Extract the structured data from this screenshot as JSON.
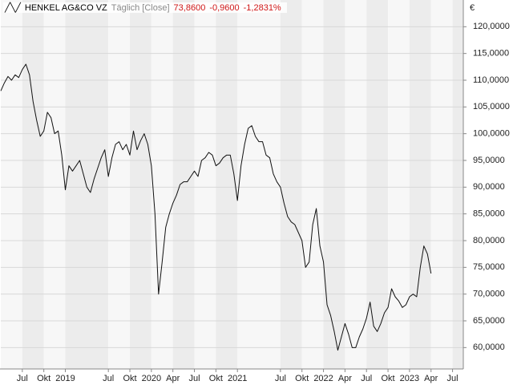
{
  "chart_data": {
    "type": "line",
    "title": "HENKEL AG&CO VZ",
    "subtitle": "Täglich [Close]",
    "last": "73,8600",
    "change": "-0,9600",
    "change_pct": "-1,2831%",
    "currency": "€",
    "xlim": [
      0,
      129
    ],
    "xticks": [
      {
        "value": 6,
        "label": "Jul"
      },
      {
        "value": 12,
        "label": "Okt"
      },
      {
        "value": 18,
        "label": "2019"
      },
      {
        "value": 30,
        "label": "Jul"
      },
      {
        "value": 36,
        "label": "Okt"
      },
      {
        "value": 42,
        "label": "2020"
      },
      {
        "value": 48,
        "label": "Apr"
      },
      {
        "value": 54,
        "label": "Jul"
      },
      {
        "value": 60,
        "label": "Okt"
      },
      {
        "value": 66,
        "label": "2021"
      },
      {
        "value": 78,
        "label": "Jul"
      },
      {
        "value": 84,
        "label": "Okt"
      },
      {
        "value": 90,
        "label": "2022"
      },
      {
        "value": 96,
        "label": "Apr"
      },
      {
        "value": 102,
        "label": "Jul"
      },
      {
        "value": 108,
        "label": "Okt"
      },
      {
        "value": 114,
        "label": "2023"
      },
      {
        "value": 120,
        "label": "Apr"
      },
      {
        "value": 126,
        "label": "Jul"
      }
    ],
    "ylim": [
      56,
      125
    ],
    "yticks": [
      {
        "value": 60,
        "label": "60,0000"
      },
      {
        "value": 65,
        "label": "65,0000"
      },
      {
        "value": 70,
        "label": "70,0000"
      },
      {
        "value": 75,
        "label": "75,0000"
      },
      {
        "value": 80,
        "label": "80,0000"
      },
      {
        "value": 85,
        "label": "85,0000"
      },
      {
        "value": 90,
        "label": "90,0000"
      },
      {
        "value": 95,
        "label": "95,0000"
      },
      {
        "value": 100,
        "label": "100,0000"
      },
      {
        "value": 105,
        "label": "105,0000"
      },
      {
        "value": 110,
        "label": "110,0000"
      },
      {
        "value": 115,
        "label": "115,0000"
      },
      {
        "value": 120,
        "label": "120,0000"
      }
    ],
    "grid": true,
    "series": [
      {
        "color": "#111111",
        "values": [
          108,
          109.5,
          110.7,
          110,
          111,
          110.5,
          112,
          113,
          111,
          106,
          102.5,
          99.5,
          100.5,
          104,
          103,
          100,
          100.5,
          96,
          89.5,
          94,
          93,
          94,
          95,
          92.5,
          90,
          89,
          91.5,
          93.5,
          95.5,
          97,
          92,
          95.5,
          98,
          98.5,
          97,
          98,
          96,
          100.5,
          97,
          98.7,
          100,
          98,
          94,
          85,
          70,
          76,
          82.5,
          85,
          87,
          88.5,
          90.5,
          91,
          91,
          92,
          93,
          92,
          95,
          95.5,
          96.5,
          96,
          94,
          94.5,
          95.5,
          96,
          96,
          92.5,
          87.5,
          94,
          98,
          101,
          101.5,
          99.5,
          98.5,
          98.5,
          96,
          95.5,
          92.5,
          91,
          90,
          87,
          84.5,
          83.5,
          83,
          81.5,
          80,
          75,
          76,
          83,
          86,
          79,
          76,
          68,
          66,
          63,
          59.5,
          62,
          64.5,
          62.5,
          60,
          60,
          62,
          63.5,
          65.5,
          68.5,
          64,
          63,
          64.5,
          66.5,
          67.5,
          71,
          69.5,
          68.7,
          67.5,
          68,
          69.5,
          70,
          69.5,
          75,
          79,
          77.5,
          73.86
        ]
      }
    ]
  }
}
